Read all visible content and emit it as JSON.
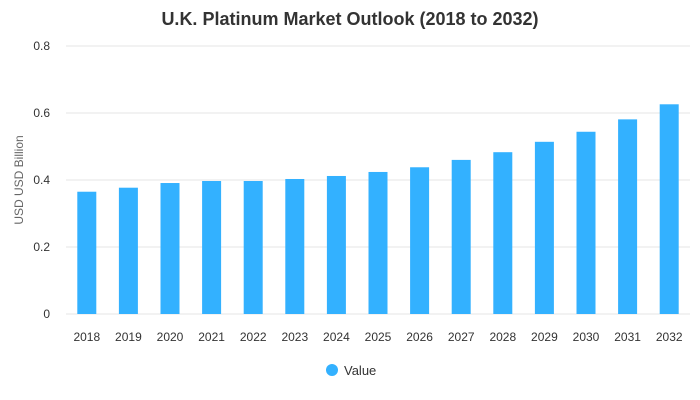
{
  "chart_data": {
    "type": "bar",
    "title": "U.K. Platinum Market Outlook (2018 to 2032)",
    "xlabel": "",
    "ylabel": "USD USD Billion",
    "categories": [
      "2018",
      "2019",
      "2020",
      "2021",
      "2022",
      "2023",
      "2024",
      "2025",
      "2026",
      "2027",
      "2028",
      "2029",
      "2030",
      "2031",
      "2032"
    ],
    "series": [
      {
        "name": "Value",
        "color": "#33b1ff",
        "values": [
          0.365,
          0.377,
          0.391,
          0.397,
          0.397,
          0.403,
          0.412,
          0.424,
          0.438,
          0.46,
          0.483,
          0.514,
          0.544,
          0.581,
          0.626
        ]
      }
    ],
    "ylim": [
      0,
      0.8
    ],
    "yticks": [
      "0",
      "0.2",
      "0.4",
      "0.6",
      "0.8"
    ],
    "grid": true,
    "legend_position": "bottom"
  }
}
